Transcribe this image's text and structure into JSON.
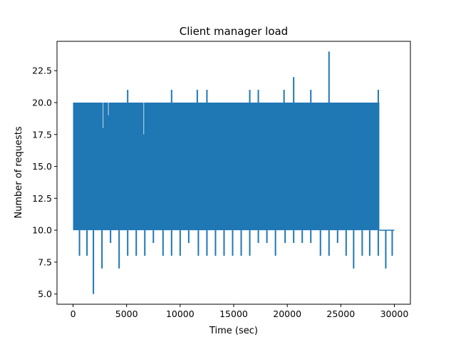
{
  "chart_data": {
    "type": "line",
    "title": "Client manager load",
    "xlabel": "Time (sec)",
    "ylabel": "Number of requests",
    "xlim": [
      -1500,
      31500
    ],
    "ylim": [
      4.2,
      24.8
    ],
    "grid": false,
    "legend": "none",
    "series_color": "#1f77b4",
    "x_ticks": [
      {
        "value": 0,
        "label": "0"
      },
      {
        "value": 5000,
        "label": "5000"
      },
      {
        "value": 10000,
        "label": "10000"
      },
      {
        "value": 15000,
        "label": "15000"
      },
      {
        "value": 20000,
        "label": "20000"
      },
      {
        "value": 25000,
        "label": "25000"
      },
      {
        "value": 30000,
        "label": "30000"
      }
    ],
    "y_ticks": [
      {
        "value": 5.0,
        "label": "5.0"
      },
      {
        "value": 7.5,
        "label": "7.5"
      },
      {
        "value": 10.0,
        "label": "10.0"
      },
      {
        "value": 12.5,
        "label": "12.5"
      },
      {
        "value": 15.0,
        "label": "15.0"
      },
      {
        "value": 17.5,
        "label": "17.5"
      },
      {
        "value": 20.0,
        "label": "20.0"
      },
      {
        "value": 22.5,
        "label": "22.5"
      }
    ],
    "series": [
      {
        "dense_band": {
          "x_start": 0,
          "x_end": 28600,
          "y_low": 10,
          "y_high": 20
        },
        "tail": {
          "x_start": 28600,
          "x_end": 30000,
          "y": 10
        },
        "high_spikes": [
          {
            "x": 5100,
            "y": 21
          },
          {
            "x": 9200,
            "y": 21
          },
          {
            "x": 11600,
            "y": 21
          },
          {
            "x": 12500,
            "y": 21
          },
          {
            "x": 16500,
            "y": 21
          },
          {
            "x": 17300,
            "y": 21
          },
          {
            "x": 19700,
            "y": 21
          },
          {
            "x": 20600,
            "y": 22
          },
          {
            "x": 22200,
            "y": 21
          },
          {
            "x": 23900,
            "y": 24
          },
          {
            "x": 28500,
            "y": 21
          }
        ],
        "low_spikes": [
          {
            "x": 600,
            "y": 8
          },
          {
            "x": 1300,
            "y": 8
          },
          {
            "x": 1900,
            "y": 5
          },
          {
            "x": 2700,
            "y": 7
          },
          {
            "x": 3500,
            "y": 9
          },
          {
            "x": 4300,
            "y": 7
          },
          {
            "x": 5100,
            "y": 8
          },
          {
            "x": 5900,
            "y": 8
          },
          {
            "x": 6700,
            "y": 8
          },
          {
            "x": 7500,
            "y": 9
          },
          {
            "x": 8400,
            "y": 8
          },
          {
            "x": 9200,
            "y": 8
          },
          {
            "x": 10000,
            "y": 8
          },
          {
            "x": 10800,
            "y": 9
          },
          {
            "x": 11700,
            "y": 8
          },
          {
            "x": 12500,
            "y": 8
          },
          {
            "x": 13300,
            "y": 8
          },
          {
            "x": 14100,
            "y": 8
          },
          {
            "x": 14900,
            "y": 8
          },
          {
            "x": 15700,
            "y": 8
          },
          {
            "x": 16500,
            "y": 8
          },
          {
            "x": 17300,
            "y": 9
          },
          {
            "x": 18100,
            "y": 9
          },
          {
            "x": 18900,
            "y": 8
          },
          {
            "x": 19800,
            "y": 9
          },
          {
            "x": 20600,
            "y": 9
          },
          {
            "x": 21400,
            "y": 9
          },
          {
            "x": 22200,
            "y": 9
          },
          {
            "x": 23100,
            "y": 8
          },
          {
            "x": 23900,
            "y": 8
          },
          {
            "x": 24700,
            "y": 9
          },
          {
            "x": 25500,
            "y": 8
          },
          {
            "x": 26200,
            "y": 7
          },
          {
            "x": 27000,
            "y": 8
          },
          {
            "x": 27700,
            "y": 8
          },
          {
            "x": 28500,
            "y": 8
          },
          {
            "x": 29200,
            "y": 7
          },
          {
            "x": 29800,
            "y": 8
          }
        ],
        "inner_dips": [
          {
            "x": 2800,
            "y": 18
          },
          {
            "x": 3300,
            "y": 19
          },
          {
            "x": 6600,
            "y": 17.5
          }
        ]
      }
    ]
  }
}
